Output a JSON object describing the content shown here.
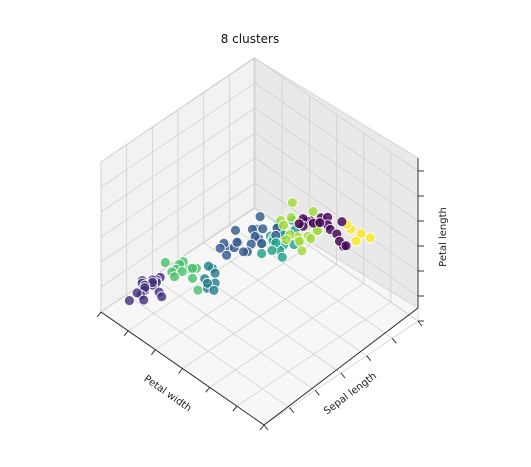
{
  "chart_data": {
    "type": "scatter",
    "projection": "3d",
    "title": "8 clusters",
    "xlabel": "Petal width",
    "ylabel": "Sepal length",
    "zlabel": "Petal length",
    "xlim": [
      0,
      2.5
    ],
    "ylim": [
      4,
      8
    ],
    "zlim": [
      1,
      7
    ],
    "grid": true,
    "marker_edge": "#ffffff",
    "cluster_colors": [
      "#440154",
      "#46327e",
      "#365c8d",
      "#277f8e",
      "#1fa187",
      "#4ac16d",
      "#a0da39",
      "#fde725"
    ],
    "clusters": [
      {
        "label": 0,
        "points": [
          [
            1.9,
            6.3,
            5.6
          ],
          [
            2.1,
            6.4,
            5.6
          ],
          [
            1.8,
            6.3,
            5.5
          ],
          [
            2.0,
            6.5,
            5.8
          ],
          [
            2.3,
            6.4,
            5.3
          ],
          [
            2.0,
            6.5,
            5.5
          ],
          [
            1.8,
            6.2,
            5.7
          ],
          [
            1.8,
            6.2,
            5.4
          ],
          [
            2.2,
            6.4,
            5.6
          ],
          [
            2.4,
            6.3,
            5.6
          ],
          [
            1.9,
            6.4,
            5.5
          ],
          [
            1.8,
            6.1,
            5.6
          ],
          [
            2.0,
            6.3,
            5.8
          ],
          [
            2.1,
            6.7,
            5.6
          ],
          [
            1.8,
            6.4,
            5.4
          ],
          [
            1.9,
            6.5,
            5.6
          ],
          [
            2.3,
            6.3,
            5.6
          ]
        ]
      },
      {
        "label": 1,
        "points": [
          [
            0.2,
            5.0,
            1.4
          ],
          [
            0.2,
            5.1,
            1.5
          ],
          [
            0.3,
            4.6,
            1.4
          ],
          [
            0.2,
            4.8,
            1.6
          ],
          [
            0.1,
            4.9,
            1.5
          ],
          [
            0.2,
            5.2,
            1.5
          ],
          [
            0.2,
            5.0,
            1.6
          ],
          [
            0.4,
            4.9,
            1.4
          ],
          [
            0.2,
            4.7,
            1.3
          ],
          [
            0.3,
            5.0,
            1.3
          ],
          [
            0.2,
            4.8,
            1.4
          ],
          [
            0.1,
            4.9,
            1.4
          ],
          [
            0.2,
            5.1,
            1.4
          ],
          [
            0.2,
            4.6,
            1.5
          ],
          [
            0.2,
            4.8,
            1.5
          ],
          [
            0.2,
            4.4,
            1.4
          ],
          [
            0.2,
            5.0,
            1.5
          ]
        ]
      },
      {
        "label": 2,
        "points": [
          [
            1.0,
            5.8,
            4.2
          ],
          [
            1.1,
            5.7,
            4.0
          ],
          [
            1.2,
            5.9,
            4.5
          ],
          [
            1.3,
            6.0,
            4.6
          ],
          [
            1.3,
            5.5,
            4.2
          ],
          [
            1.0,
            5.5,
            4.0
          ],
          [
            1.4,
            5.8,
            4.4
          ],
          [
            1.3,
            5.6,
            4.1
          ],
          [
            1.1,
            5.6,
            3.9
          ],
          [
            1.2,
            6.1,
            4.8
          ],
          [
            1.5,
            6.0,
            4.7
          ],
          [
            1.0,
            5.4,
            3.9
          ],
          [
            1.3,
            5.7,
            4.3
          ],
          [
            1.4,
            6.2,
            4.6
          ],
          [
            1.2,
            5.5,
            4.4
          ],
          [
            1.3,
            5.8,
            4.5
          ],
          [
            1.0,
            5.6,
            3.7
          ],
          [
            1.2,
            6.0,
            4.4
          ],
          [
            1.1,
            5.4,
            3.8
          ],
          [
            1.3,
            5.9,
            4.3
          ]
        ]
      },
      {
        "label": 3,
        "points": [
          [
            1.1,
            5.1,
            3.0
          ],
          [
            1.0,
            5.0,
            3.1
          ],
          [
            1.1,
            5.1,
            3.4
          ],
          [
            1.2,
            4.9,
            3.1
          ],
          [
            1.0,
            5.2,
            3.3
          ],
          [
            1.1,
            4.9,
            3.0
          ],
          [
            1.0,
            5.1,
            3.5
          ],
          [
            1.1,
            4.9,
            3.2
          ]
        ]
      },
      {
        "label": 4,
        "points": [
          [
            1.3,
            6.0,
            4.0
          ],
          [
            1.5,
            6.2,
            4.1
          ],
          [
            1.4,
            6.3,
            4.3
          ],
          [
            1.4,
            6.1,
            4.3
          ],
          [
            1.5,
            5.9,
            4.2
          ],
          [
            1.3,
            6.4,
            4.4
          ],
          [
            1.5,
            6.1,
            4.0
          ],
          [
            1.3,
            6.2,
            4.1
          ],
          [
            1.6,
            6.3,
            4.2
          ],
          [
            1.4,
            6.6,
            4.5
          ],
          [
            1.5,
            6.0,
            4.4
          ],
          [
            1.4,
            5.8,
            4.0
          ],
          [
            1.3,
            6.4,
            4.3
          ],
          [
            1.5,
            6.2,
            4.5
          ],
          [
            1.4,
            6.1,
            4.2
          ],
          [
            1.6,
            6.0,
            4.0
          ],
          [
            1.2,
            6.0,
            4.2
          ],
          [
            1.5,
            6.5,
            4.4
          ]
        ]
      },
      {
        "label": 5,
        "points": [
          [
            0.3,
            5.8,
            1.4
          ],
          [
            0.2,
            5.7,
            1.5
          ],
          [
            0.4,
            5.8,
            1.6
          ],
          [
            0.2,
            5.5,
            1.4
          ],
          [
            0.3,
            5.6,
            1.5
          ],
          [
            0.4,
            5.7,
            1.3
          ],
          [
            0.1,
            5.5,
            1.6
          ],
          [
            0.2,
            5.6,
            1.4
          ],
          [
            0.3,
            5.4,
            1.5
          ],
          [
            0.4,
            5.7,
            1.7
          ],
          [
            0.2,
            5.8,
            1.5
          ],
          [
            0.6,
            5.5,
            1.4
          ]
        ]
      },
      {
        "label": 6,
        "points": [
          [
            1.6,
            6.4,
            4.4
          ],
          [
            1.6,
            6.5,
            4.8
          ],
          [
            1.7,
            6.3,
            4.5
          ],
          [
            1.6,
            6.7,
            4.6
          ],
          [
            1.5,
            6.6,
            4.6
          ],
          [
            1.8,
            6.1,
            4.9
          ],
          [
            1.6,
            6.1,
            4.6
          ],
          [
            1.4,
            6.3,
            4.8
          ],
          [
            1.7,
            6.5,
            4.5
          ],
          [
            1.8,
            6.4,
            4.7
          ],
          [
            1.4,
            6.6,
            5.2
          ],
          [
            1.5,
            6.2,
            4.9
          ],
          [
            1.6,
            6.8,
            5.0
          ],
          [
            1.7,
            6.7,
            4.9
          ],
          [
            1.9,
            6.4,
            5.2
          ],
          [
            1.8,
            6.6,
            4.8
          ],
          [
            1.6,
            6.2,
            4.7
          ],
          [
            1.7,
            6.8,
            4.8
          ],
          [
            1.5,
            6.4,
            5.0
          ],
          [
            1.9,
            6.0,
            4.8
          ]
        ]
      },
      {
        "label": 7,
        "points": [
          [
            2.2,
            6.9,
            4.8
          ],
          [
            2.3,
            7.1,
            4.9
          ],
          [
            2.0,
            7.0,
            5.0
          ],
          [
            2.1,
            7.2,
            4.6
          ],
          [
            2.0,
            7.1,
            4.7
          ]
        ]
      }
    ]
  }
}
